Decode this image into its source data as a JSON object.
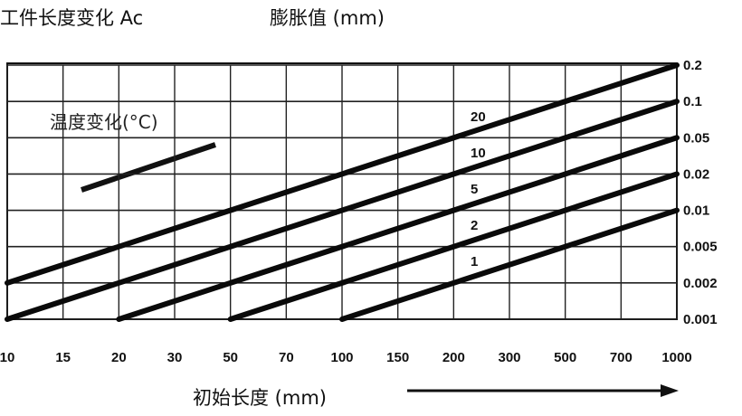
{
  "chart_data": {
    "type": "line",
    "title": "工件长度变化 Ac",
    "ylabel": "膨胀值 (mm)",
    "xlabel": "初始长度 (mm)",
    "x_scale": "log",
    "y_scale": "log",
    "x_ticks": [
      "10",
      "15",
      "20",
      "30",
      "50",
      "70",
      "100",
      "150",
      "200",
      "300",
      "500",
      "700",
      "1000"
    ],
    "y_ticks": [
      "0.2",
      "0.1",
      "0.05",
      "0.02",
      "0.01",
      "0.005",
      "0.002",
      "0.001"
    ],
    "xlim": [
      10,
      1000
    ],
    "ylim": [
      0.001,
      0.2
    ],
    "grid": true,
    "legend_title": "温度变化(°C)",
    "series": [
      {
        "name": "20",
        "points": [
          [
            10,
            0.002
          ],
          [
            1000,
            0.2
          ]
        ]
      },
      {
        "name": "10",
        "points": [
          [
            10,
            0.001
          ],
          [
            1000,
            0.1
          ]
        ]
      },
      {
        "name": "5",
        "points": [
          [
            20,
            0.001
          ],
          [
            1000,
            0.05
          ]
        ]
      },
      {
        "name": "2",
        "points": [
          [
            50,
            0.001
          ],
          [
            1000,
            0.02
          ]
        ]
      },
      {
        "name": "1",
        "points": [
          [
            100,
            0.001
          ],
          [
            1000,
            0.01
          ]
        ]
      }
    ]
  }
}
